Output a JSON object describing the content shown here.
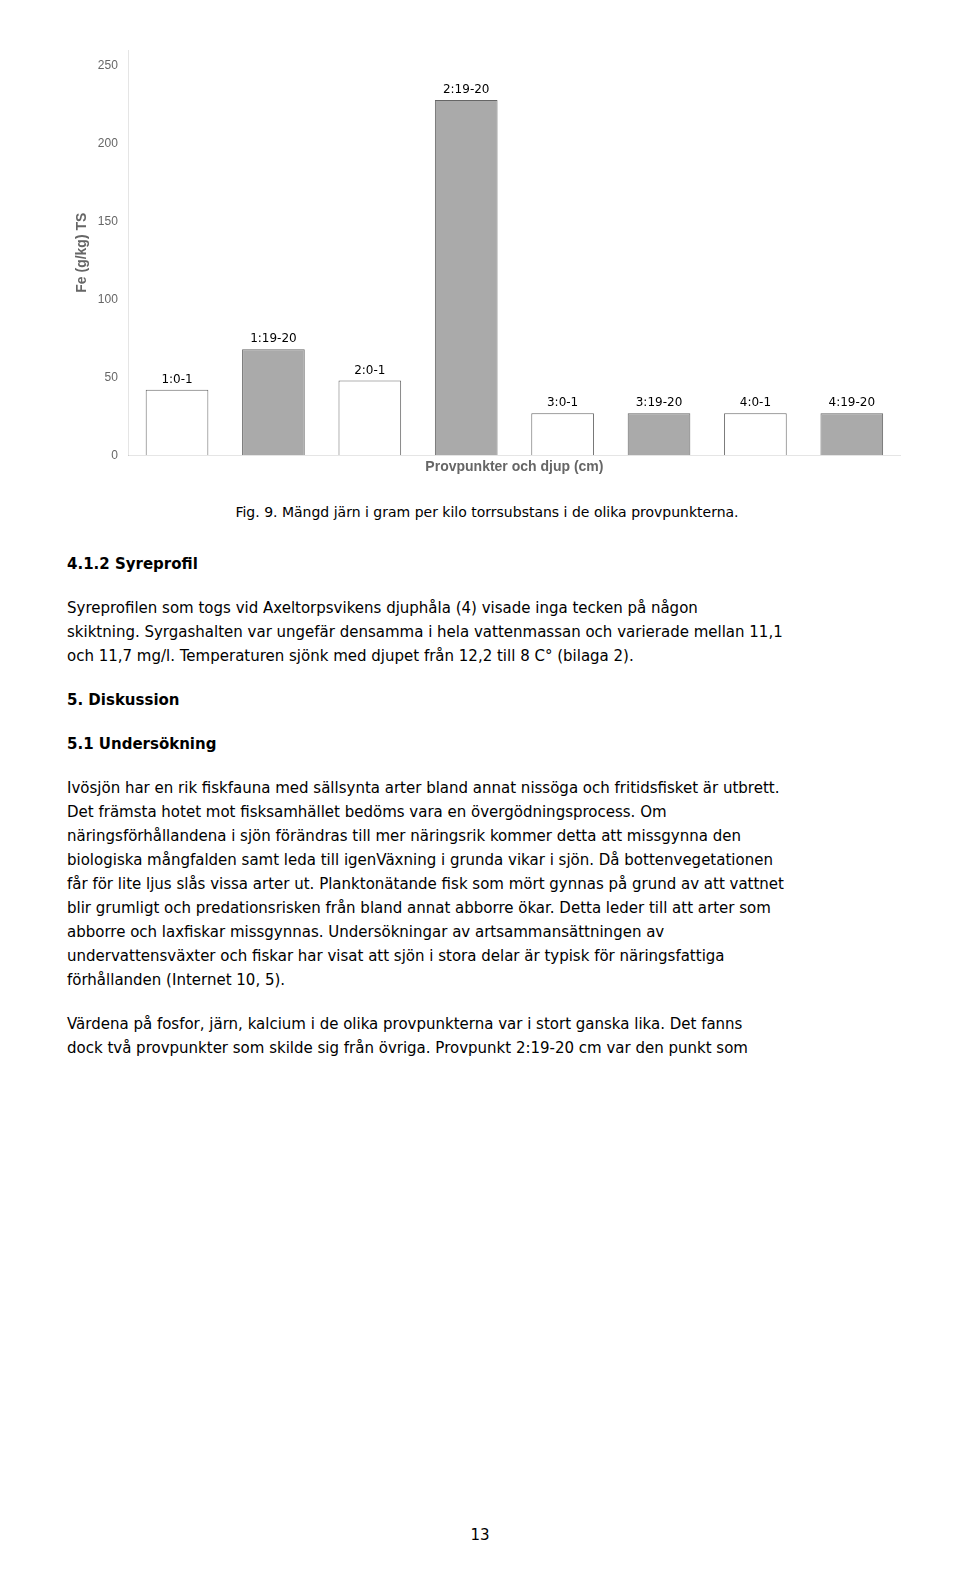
{
  "chart_data": {
    "type": "bar",
    "xlabel": "Provpunkter och djup (cm)",
    "ylabel": "Fe (g/kg) TS",
    "categories": [
      "1:0-1",
      "1:19-20",
      "2:0-1",
      "2:19-20",
      "3:0-1",
      "3:19-20",
      "4:0-1",
      "4:19-20"
    ],
    "values": [
      42,
      68,
      48,
      228,
      27,
      27,
      27,
      27
    ],
    "colors": [
      "white",
      "#aaaaaa",
      "white",
      "#aaaaaa",
      "white",
      "#aaaaaa",
      "white",
      "#aaaaaa"
    ],
    "ylim": [
      0,
      260
    ],
    "yticks": [
      0,
      50,
      100,
      150,
      200,
      250
    ],
    "grid": false,
    "tick_labels": "y",
    "annotations": [
      [
        "Fig. 9. Mängd järn i gram per kilo torrsubstans i de olika provpunkterna."
      ],
      [
        "4.1.2 Syreprofil"
      ],
      [
        "Syreprofilen som togs vid Axeltorpsvikens djuphåla (4) visade inga tecken på någon",
        "skiktning. Syrgashalten var ungefär densamma i hela vattenmassan och varierade mellan 11,1",
        "och 11,7 mg/l. Temperaturen sjönk med djupet från 12,2 till 8 C° (bilaga 2)."
      ],
      [
        "5. Diskussion"
      ],
      [
        "5.1 Undersökning"
      ],
      [
        "Ivösjön har en rik fiskfauna med sällsynta arter bland annat nissöga och fritidsfisket är utbrett.",
        "Det främsta hotet mot fisksamhället bedöms vara en övergödningsprocess. Om",
        "näringsförhållandena i sjön förändras till mer näringsrik kommer detta att missgynna den",
        "biologiska mångfalden samt leda till igenVäxning i grunda vikar i sjön. Då bottenvegetationen",
        "får för lite ljus slås vissa arter ut. Planktonätande fisk som mört gynnas på grund av att vattnet",
        "blir grumligt och predationsrisken från bland annat abborre ökar. Detta leder till att arter som",
        "abborre och laxfiskar missgynnas. Undersökningar av artsammansättningen av",
        "undervattensväxter och fiskar har visat att sjön i stora delar är typisk för näringsfattiga",
        "förhållanden (Internet 10, 5)."
      ],
      [
        "Värdena på fosfor, järn, kalcium i de olika provpunkterna var i stort ganska lika. Det fanns",
        "dock två provpunkter som skilde sig från övriga. Provpunkt 2:19-20 cm var den punkt som"
      ],
      [
        "13"
      ]
    ]
  }
}
